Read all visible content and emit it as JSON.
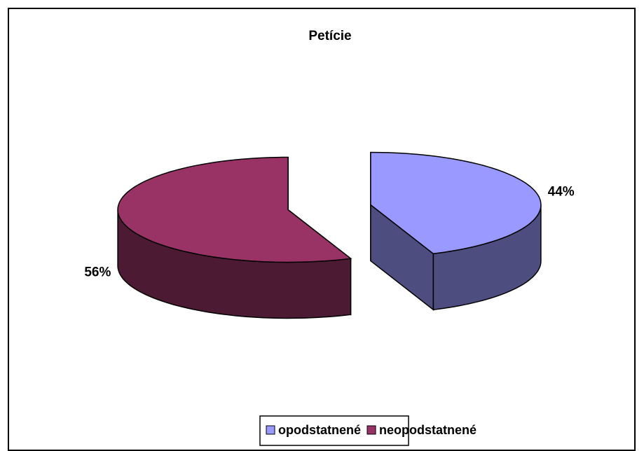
{
  "chart_data": {
    "type": "pie",
    "title": "Petície",
    "categories": [
      "opodstatnené",
      "neopodstatnené"
    ],
    "values": [
      44,
      56
    ],
    "value_labels": [
      "44%",
      "56%"
    ],
    "colors": [
      "#9999ff",
      "#993366"
    ],
    "legend": "bottom"
  }
}
